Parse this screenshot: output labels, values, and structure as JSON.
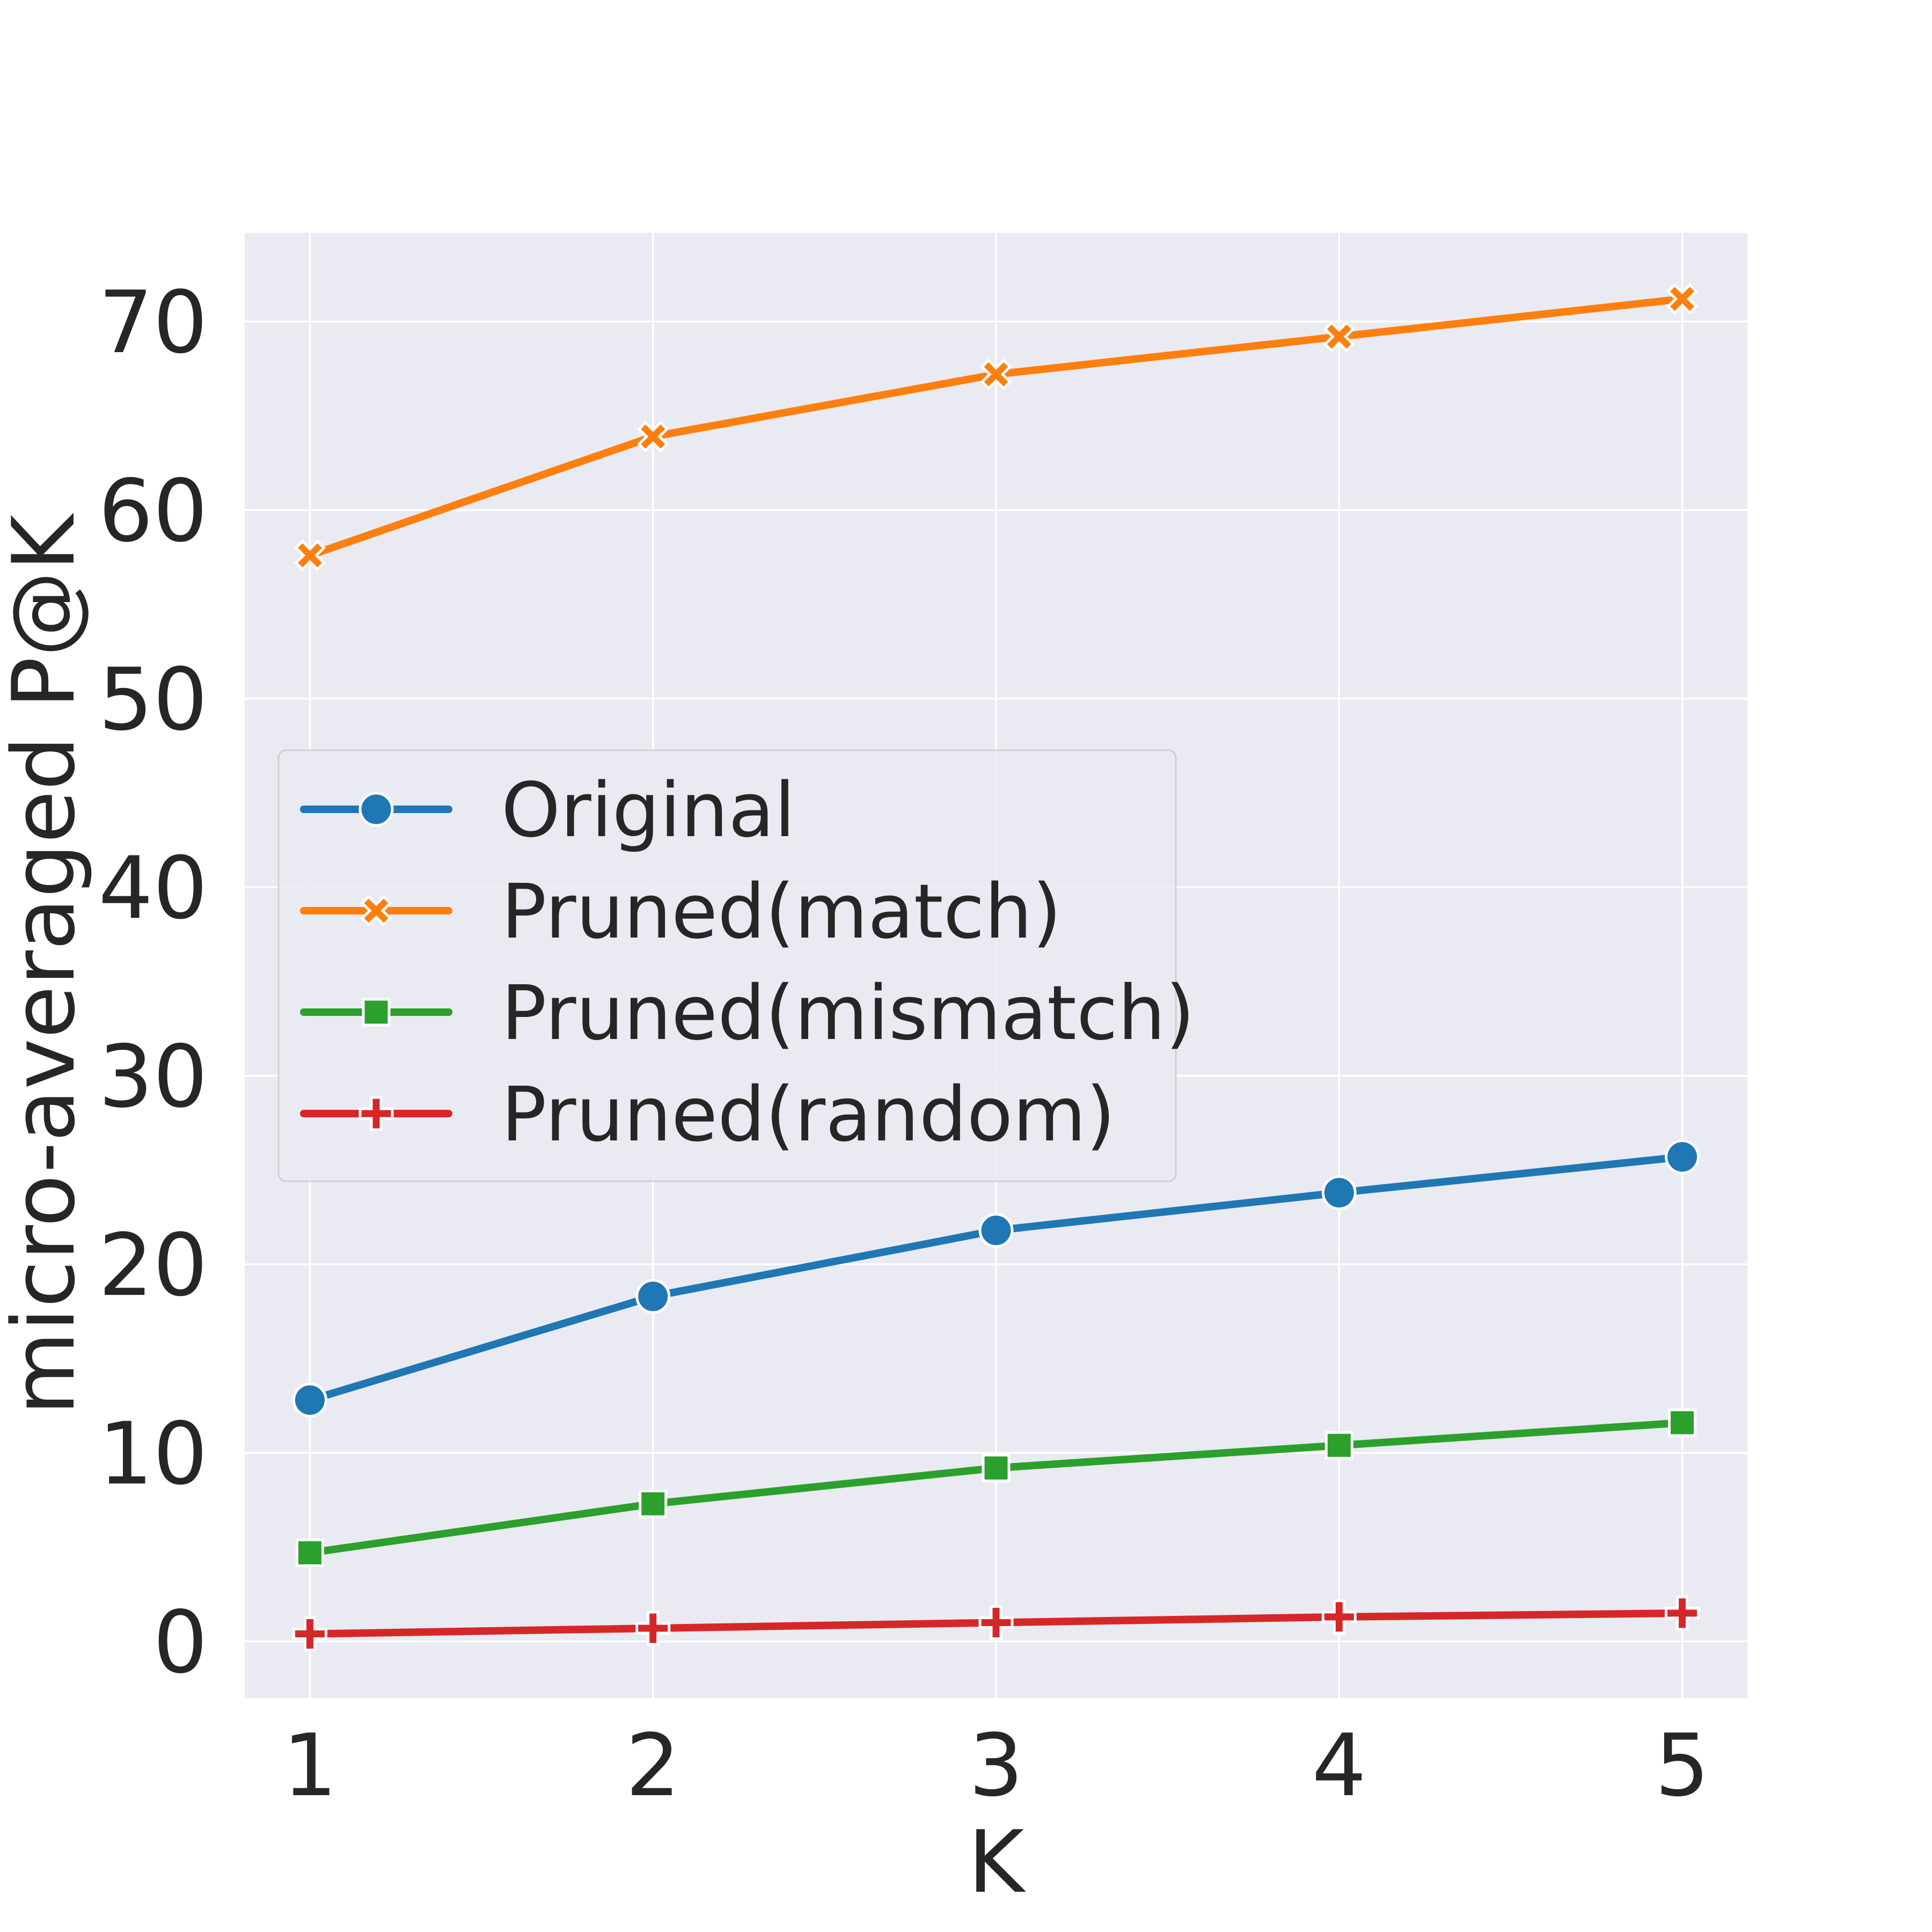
{
  "chart_data": {
    "type": "line",
    "title": "",
    "xlabel": "K",
    "ylabel": "micro-averaged P@K",
    "x": [
      1,
      2,
      3,
      4,
      5
    ],
    "xticks": [
      "1",
      "2",
      "3",
      "4",
      "5"
    ],
    "yticks": [
      "0",
      "10",
      "20",
      "30",
      "40",
      "50",
      "60",
      "70"
    ],
    "xlim": [
      0.81,
      5.19
    ],
    "ylim": [
      -3.0,
      74.7
    ],
    "grid": true,
    "legend_position": "center-left",
    "series": [
      {
        "name": "Original",
        "marker": "circle",
        "color": "#1f77b4",
        "values": [
          12.8,
          18.3,
          21.8,
          23.8,
          25.7
        ]
      },
      {
        "name": "Pruned(match)",
        "marker": "x-filled",
        "color": "#ff7f0e",
        "values": [
          57.6,
          63.9,
          67.2,
          69.2,
          71.2
        ]
      },
      {
        "name": "Pruned(mismatch)",
        "marker": "square",
        "color": "#2ca02c",
        "values": [
          4.7,
          7.3,
          9.2,
          10.4,
          11.6
        ]
      },
      {
        "name": "Pruned(random)",
        "marker": "plus-filled",
        "color": "#d62728",
        "values": [
          0.4,
          0.7,
          1.0,
          1.3,
          1.5
        ]
      }
    ]
  }
}
